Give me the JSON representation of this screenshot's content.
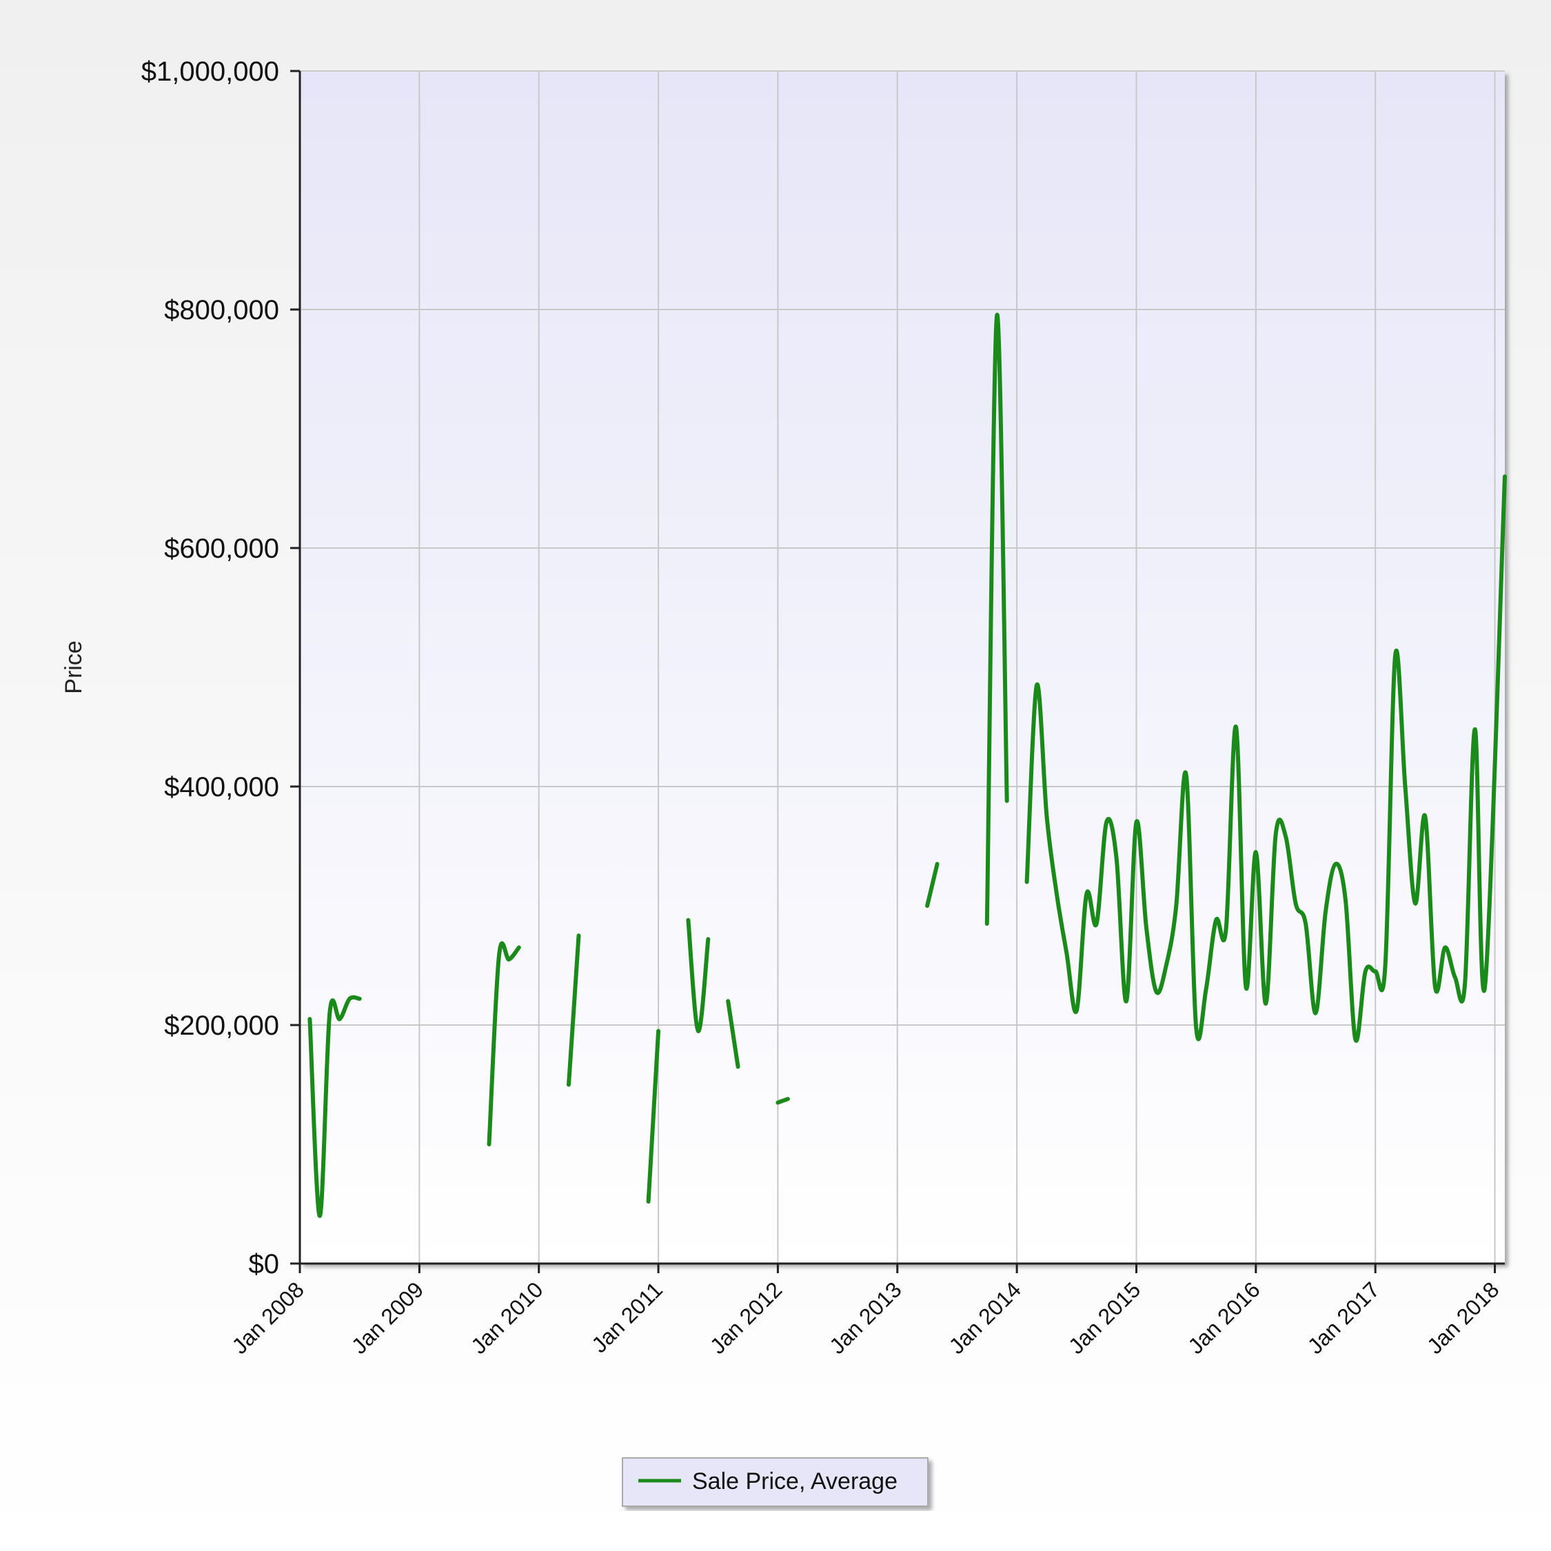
{
  "chart_data": {
    "type": "line",
    "ylabel": "Price",
    "xlabel": "",
    "ylim": [
      0,
      1000000
    ],
    "xlim": [
      "2008-01",
      "2018-02"
    ],
    "y_ticks": [
      "$0",
      "$200,000",
      "$400,000",
      "$600,000",
      "$800,000",
      "$1,000,000"
    ],
    "x_ticks": [
      "Jan 2008",
      "Jan 2009",
      "Jan 2010",
      "Jan 2011",
      "Jan 2012",
      "Jan 2013",
      "Jan 2014",
      "Jan 2015",
      "Jan 2016",
      "Jan 2017",
      "Jan 2018"
    ],
    "grid": true,
    "legend_position": "bottom",
    "series": [
      {
        "name": "Sale Price, Average",
        "color": "#1a8a1a",
        "segments": [
          [
            [
              "2008-02",
              205000
            ],
            [
              "2008-03",
              40000
            ],
            [
              "2008-04",
              210000
            ],
            [
              "2008-05",
              205000
            ],
            [
              "2008-06",
              222000
            ],
            [
              "2008-07",
              222000
            ]
          ],
          [
            [
              "2009-08",
              100000
            ],
            [
              "2009-09",
              258000
            ],
            [
              "2009-10",
              255000
            ],
            [
              "2009-11",
              265000
            ]
          ],
          [
            [
              "2010-04",
              150000
            ],
            [
              "2010-05",
              275000
            ]
          ],
          [
            [
              "2010-12",
              52000
            ],
            [
              "2011-01",
              195000
            ]
          ],
          [
            [
              "2011-04",
              288000
            ],
            [
              "2011-05",
              195000
            ],
            [
              "2011-06",
              272000
            ]
          ],
          [
            [
              "2011-08",
              220000
            ],
            [
              "2011-09",
              165000
            ]
          ],
          [
            [
              "2012-01",
              135000
            ],
            [
              "2012-02",
              138000
            ]
          ],
          [
            [
              "2013-04",
              300000
            ],
            [
              "2013-05",
              335000
            ]
          ],
          [
            [
              "2013-10",
              285000
            ],
            [
              "2013-11",
              795000
            ],
            [
              "2013-12",
              388000
            ]
          ],
          [
            [
              "2014-02",
              320000
            ],
            [
              "2014-03",
              485000
            ],
            [
              "2014-04",
              375000
            ],
            [
              "2014-05",
              310000
            ],
            [
              "2014-06",
              260000
            ],
            [
              "2014-07",
              212000
            ],
            [
              "2014-08",
              310000
            ],
            [
              "2014-09",
              285000
            ],
            [
              "2014-10",
              370000
            ],
            [
              "2014-11",
              340000
            ],
            [
              "2014-12",
              220000
            ],
            [
              "2015-01",
              370000
            ],
            [
              "2015-02",
              282000
            ],
            [
              "2015-03",
              228000
            ],
            [
              "2015-04",
              250000
            ],
            [
              "2015-05",
              300000
            ],
            [
              "2015-06",
              410000
            ],
            [
              "2015-07",
              198000
            ],
            [
              "2015-08",
              230000
            ],
            [
              "2015-09",
              288000
            ],
            [
              "2015-10",
              280000
            ],
            [
              "2015-11",
              450000
            ],
            [
              "2015-12",
              232000
            ],
            [
              "2016-01",
              345000
            ],
            [
              "2016-02",
              218000
            ],
            [
              "2016-03",
              360000
            ],
            [
              "2016-04",
              358000
            ],
            [
              "2016-05",
              302000
            ],
            [
              "2016-06",
              285000
            ],
            [
              "2016-07",
              210000
            ],
            [
              "2016-08",
              295000
            ],
            [
              "2016-09",
              335000
            ],
            [
              "2016-10",
              305000
            ],
            [
              "2016-11",
              188000
            ],
            [
              "2016-12",
              245000
            ],
            [
              "2017-01",
              245000
            ],
            [
              "2017-02",
              250000
            ],
            [
              "2017-03",
              510000
            ],
            [
              "2017-04",
              400000
            ],
            [
              "2017-05",
              302000
            ],
            [
              "2017-06",
              375000
            ],
            [
              "2017-07",
              232000
            ],
            [
              "2017-08",
              265000
            ],
            [
              "2017-09",
              240000
            ],
            [
              "2017-10",
              235000
            ],
            [
              "2017-11",
              448000
            ],
            [
              "2017-12",
              232000
            ],
            [
              "2018-02",
              660000
            ]
          ]
        ]
      }
    ]
  }
}
